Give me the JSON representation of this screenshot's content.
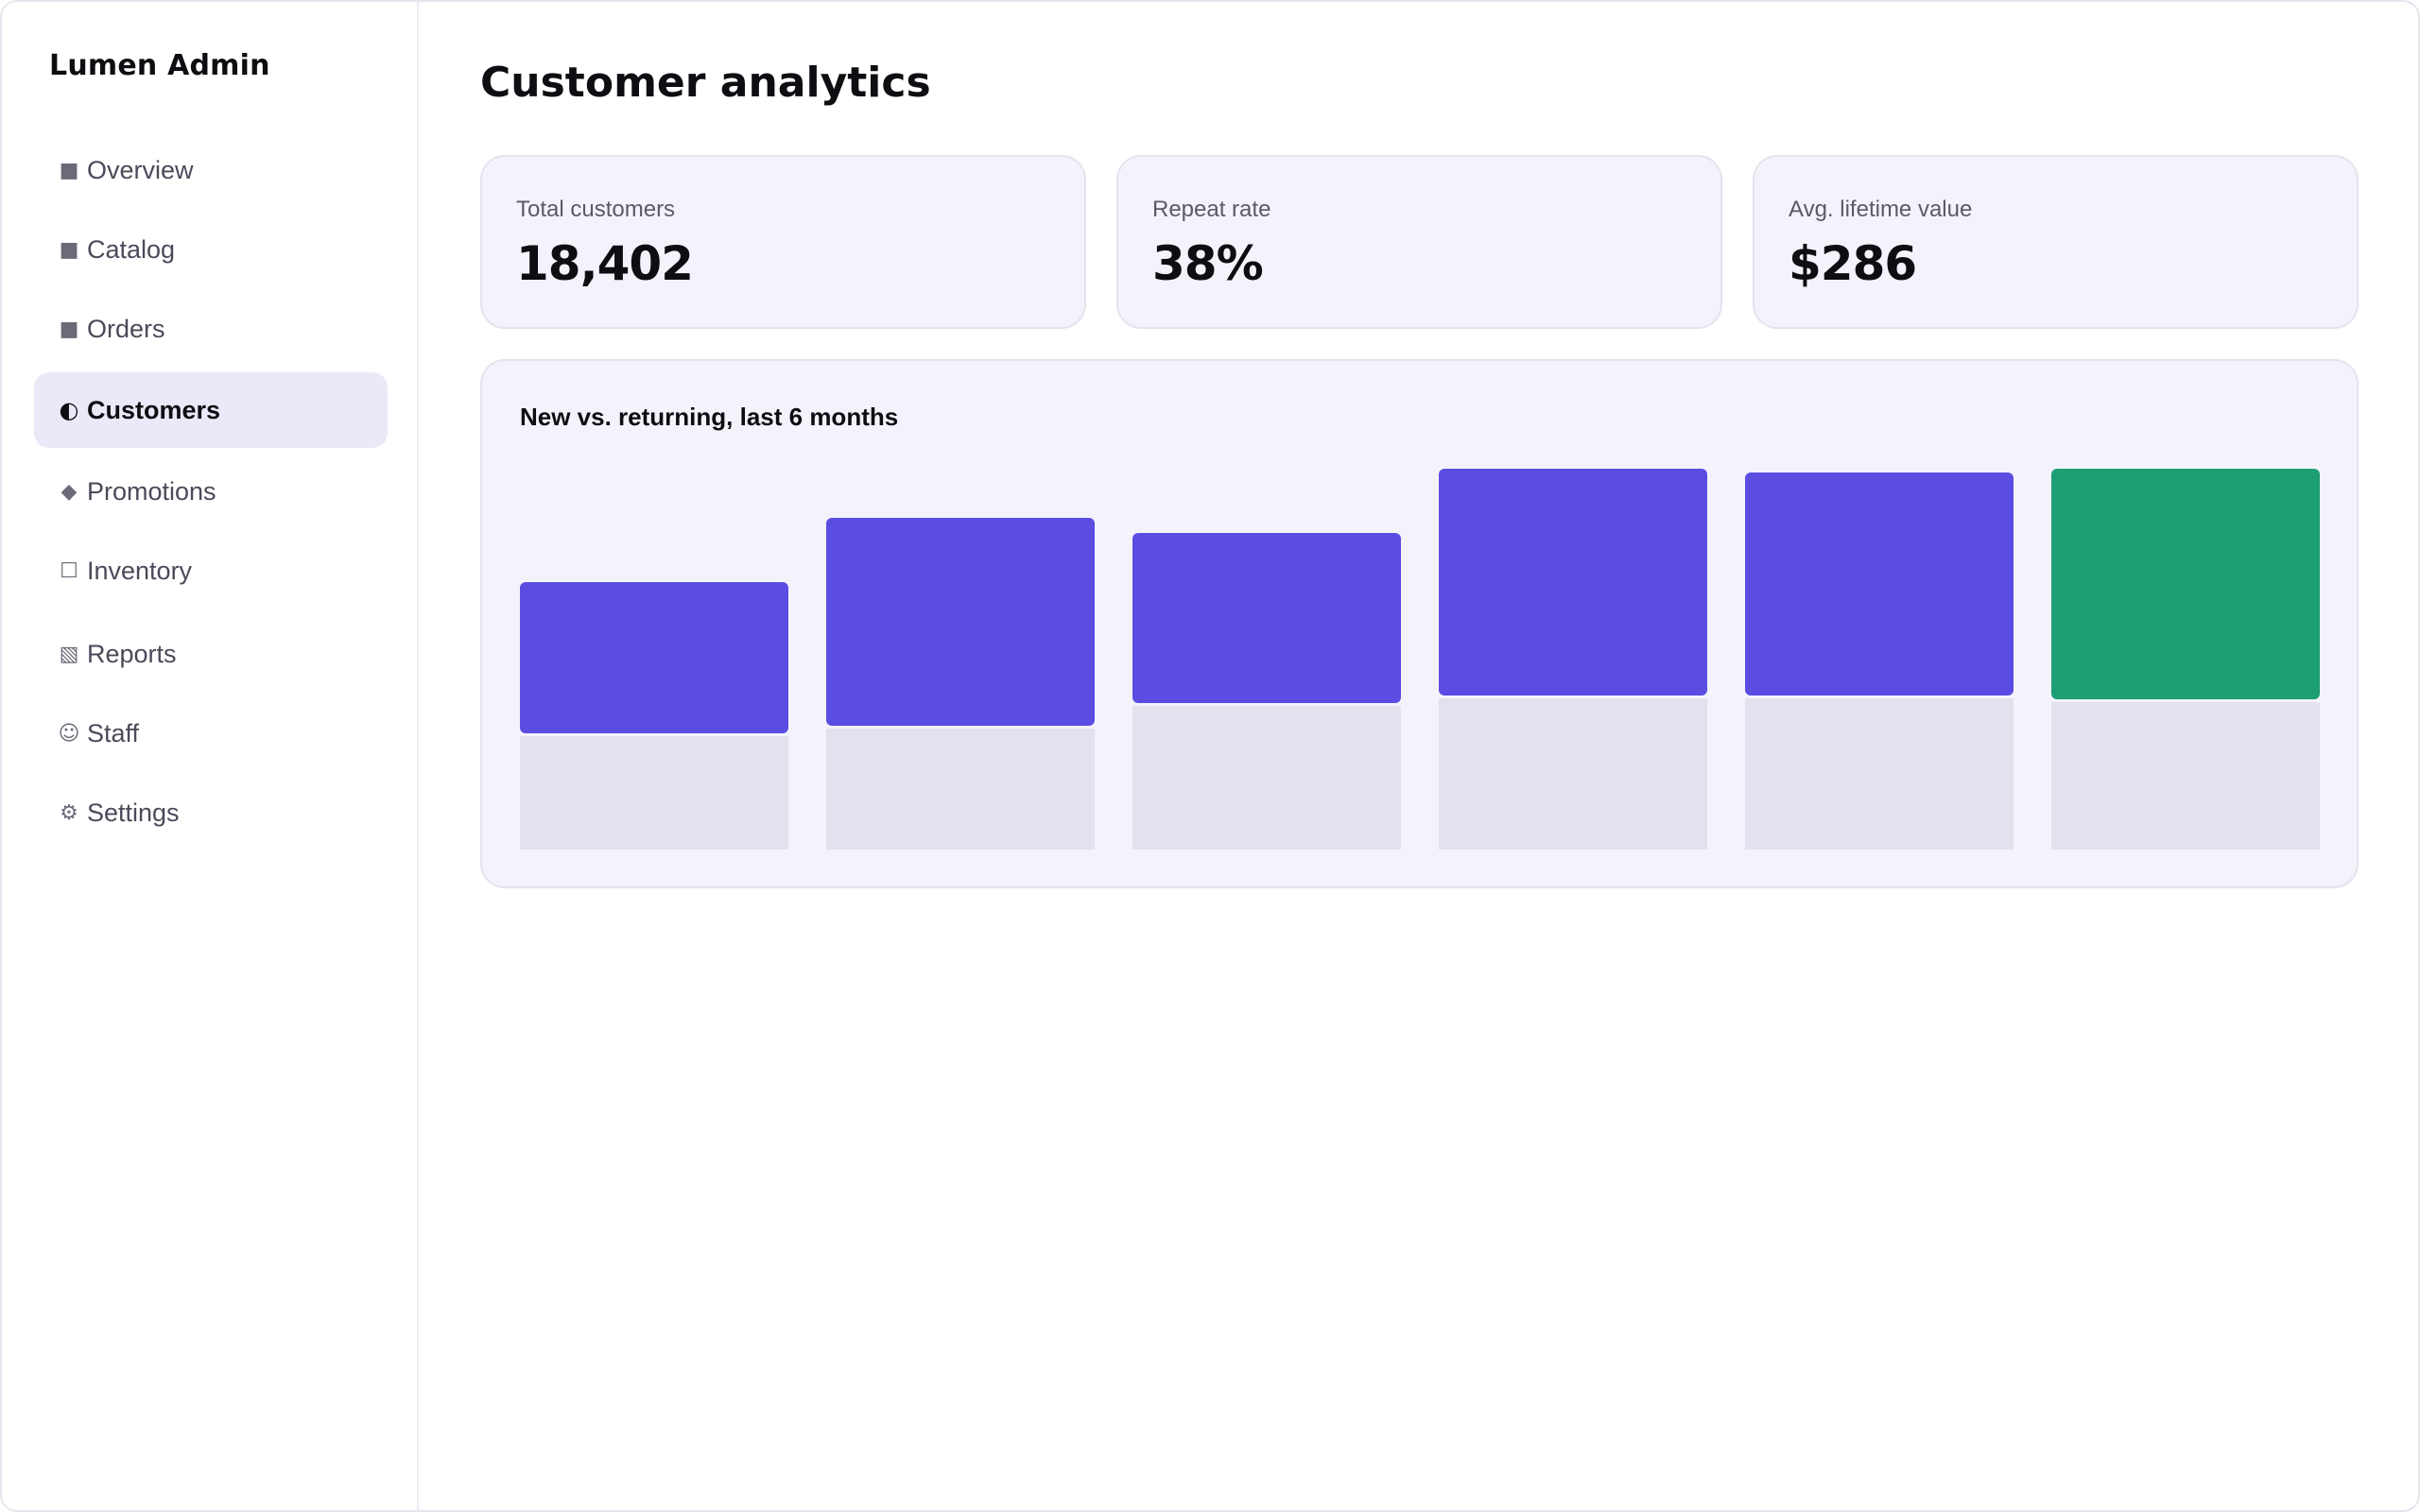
{
  "app": {
    "title": "Lumen Admin"
  },
  "sidebar": {
    "items": [
      {
        "label": "Overview",
        "icon": "square-icon",
        "glyph": "■",
        "active": false
      },
      {
        "label": "Catalog",
        "icon": "square-icon",
        "glyph": "■",
        "active": false
      },
      {
        "label": "Orders",
        "icon": "square-icon",
        "glyph": "■",
        "active": false
      },
      {
        "label": "Customers",
        "icon": "half-circle-icon",
        "glyph": "◐",
        "active": true
      },
      {
        "label": "Promotions",
        "icon": "diamond-icon",
        "glyph": "◆",
        "active": false
      },
      {
        "label": "Inventory",
        "icon": "empty-square-icon",
        "glyph": "☐",
        "active": false
      },
      {
        "label": "Reports",
        "icon": "hatched-square-icon",
        "glyph": "▧",
        "active": false
      },
      {
        "label": "Staff",
        "icon": "smiley-icon",
        "glyph": "☺",
        "active": false
      },
      {
        "label": "Settings",
        "icon": "gear-icon",
        "glyph": "⚙",
        "active": false
      }
    ]
  },
  "main": {
    "title": "Customer analytics",
    "kpis": [
      {
        "label": "Total customers",
        "value": "18,402"
      },
      {
        "label": "Repeat rate",
        "value": "38%"
      },
      {
        "label": "Avg. lifetime value",
        "value": "$286"
      }
    ]
  },
  "colors": {
    "accent": "#5b4de2",
    "highlight": "#1e9e74",
    "base_segment": "#e4e1ef",
    "active_nav_bg": "#ebe8f8"
  },
  "chart_data": {
    "type": "bar",
    "title": "New vs. returning, last 6 months",
    "stacked": true,
    "categories": [
      "",
      "",
      "",
      "",
      "",
      ""
    ],
    "series": [
      {
        "values": [
          30,
          32,
          38,
          40,
          40,
          39
        ]
      },
      {
        "values": [
          40,
          55,
          45,
          60,
          59,
          61
        ]
      }
    ],
    "highlight_index": 5,
    "ylim": [
      0,
      100
    ],
    "grid": false,
    "legend": "none"
  }
}
